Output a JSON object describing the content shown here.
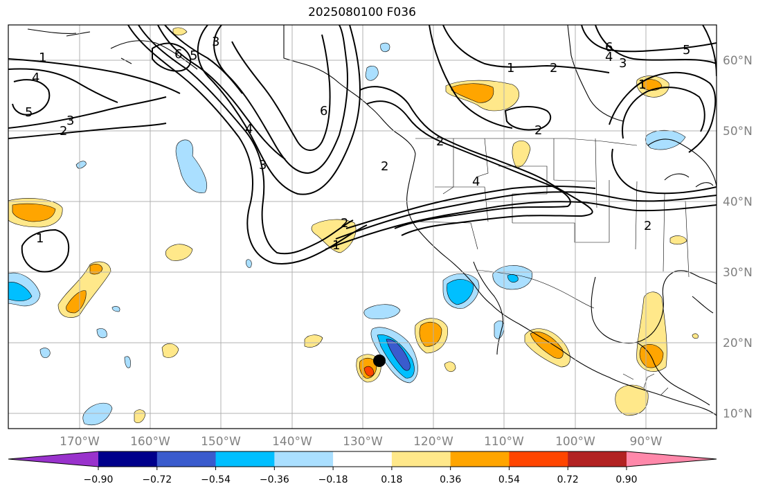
{
  "title": "2025080100 F036",
  "lat_labels": [
    "60°N",
    "50°N",
    "40°N",
    "30°N",
    "20°N",
    "10°N"
  ],
  "lon_labels": [
    "170°W",
    "160°W",
    "150°W",
    "140°W",
    "130°W",
    "120°W",
    "110°W",
    "100°W",
    "90°W"
  ],
  "colorbar": {
    "colors": [
      "#9932cc",
      "#00008b",
      "#3a5bcd",
      "#00bfff",
      "#aadfff",
      "#ffffff",
      "#ffe88a",
      "#ffa500",
      "#ff4500",
      "#b22222",
      "#ff88aa"
    ],
    "tick_labels": [
      "−0.90",
      "−0.72",
      "−0.54",
      "−0.36",
      "−0.18",
      "0.18",
      "0.36",
      "0.54",
      "0.72",
      "0.90"
    ]
  },
  "contour_labels": [
    "1",
    "4",
    "5",
    "3",
    "2",
    "6",
    "5",
    "3",
    "6",
    "2",
    "2",
    "3",
    "4",
    "1",
    "2",
    "1",
    "4",
    "2",
    "1",
    "2",
    "6",
    "5",
    "3",
    "4",
    "1",
    "2"
  ],
  "colors": {
    "frame": "#000000",
    "grid": "#b0b0b0",
    "label": "#808080"
  }
}
